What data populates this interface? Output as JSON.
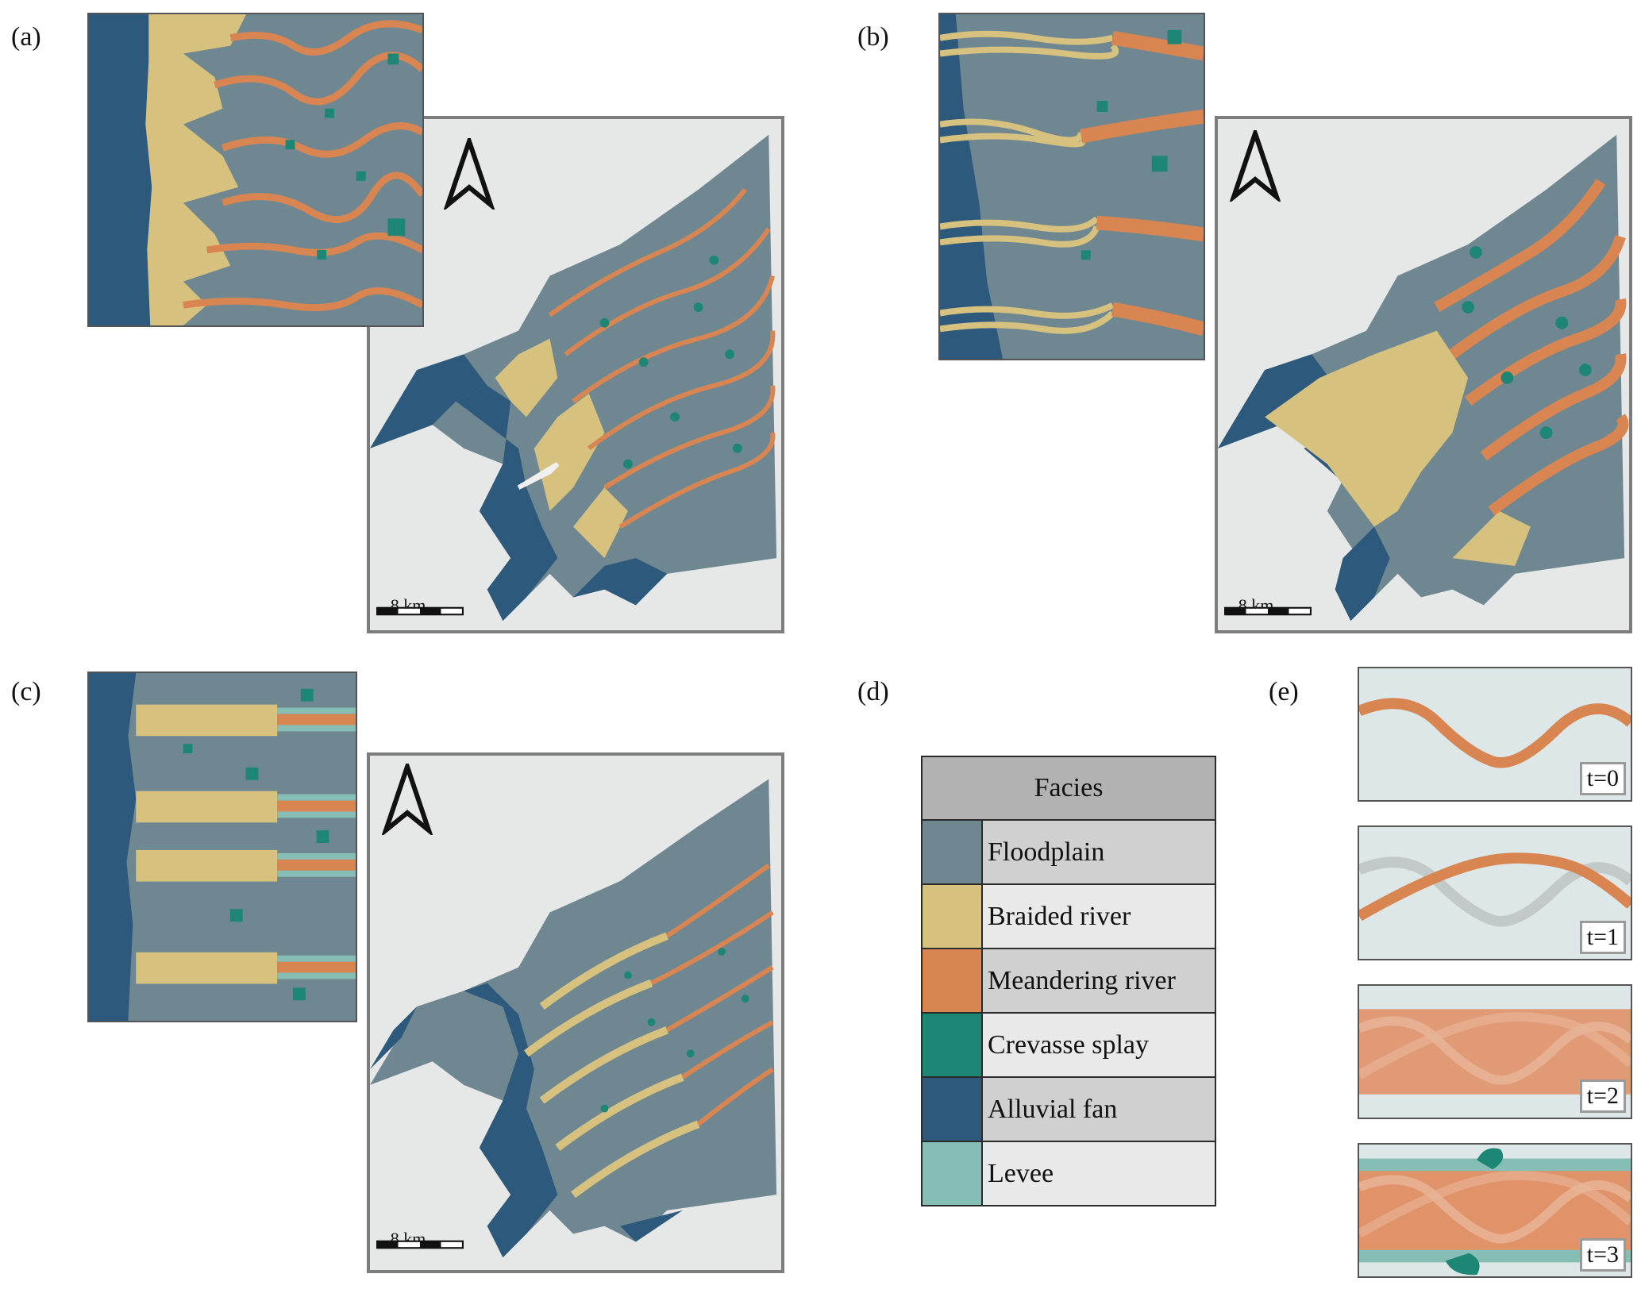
{
  "panels": {
    "a": "(a)",
    "b": "(b)",
    "c": "(c)",
    "d": "(d)",
    "e": "(e)"
  },
  "scale_label": "8 km",
  "colors": {
    "floodplain": "#6f8791",
    "braided": "#d6c17f",
    "meandering": "#d98552",
    "crevasse": "#1d8675",
    "fan": "#2d5a7c",
    "levee": "#86bdb4",
    "background": "#e6e7e7"
  },
  "legend": {
    "title": "Facies",
    "items": [
      {
        "label": "Floodplain",
        "color": "#6f8791"
      },
      {
        "label": "Braided river",
        "color": "#d6c17f"
      },
      {
        "label": "Meandering river",
        "color": "#d98552"
      },
      {
        "label": "Crevasse splay",
        "color": "#1d8675"
      },
      {
        "label": "Alluvial fan",
        "color": "#2d5a7c"
      },
      {
        "label": "Levee",
        "color": "#86bdb4"
      }
    ]
  },
  "time_steps": [
    "t=0",
    "t=1",
    "t=2",
    "t=3"
  ]
}
